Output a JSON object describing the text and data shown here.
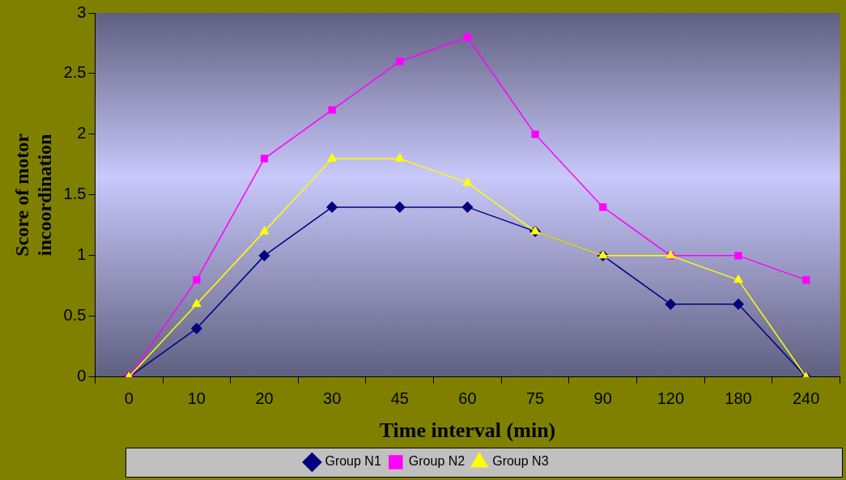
{
  "chart_data": {
    "type": "line",
    "xlabel": "Time interval (min)",
    "ylabel": "Score of motor incoordination",
    "categories": [
      "0",
      "10",
      "20",
      "30",
      "45",
      "60",
      "75",
      "90",
      "120",
      "180",
      "240"
    ],
    "ylim": [
      0,
      3
    ],
    "yticks": [
      0,
      0.5,
      1,
      1.5,
      2,
      2.5,
      3
    ],
    "grid": false,
    "legend": "bottom",
    "line_style": "solid",
    "series": [
      {
        "name": "Group N1",
        "color": "#000080",
        "marker": "diamond",
        "values": [
          0,
          0.4,
          1,
          1.4,
          1.4,
          1.4,
          1.2,
          1,
          0.6,
          0.6,
          0
        ]
      },
      {
        "name": "Group N2",
        "color": "#ff00ff",
        "marker": "square",
        "values": [
          0,
          0.8,
          1.8,
          2.2,
          2.6,
          2.8,
          2.0,
          1.4,
          1.0,
          1.0,
          0.8
        ]
      },
      {
        "name": "Group N3",
        "color": "#ffff00",
        "marker": "triangle",
        "values": [
          0,
          0.6,
          1.2,
          1.8,
          1.8,
          1.6,
          1.2,
          1.0,
          1.0,
          0.8,
          0
        ]
      }
    ]
  }
}
